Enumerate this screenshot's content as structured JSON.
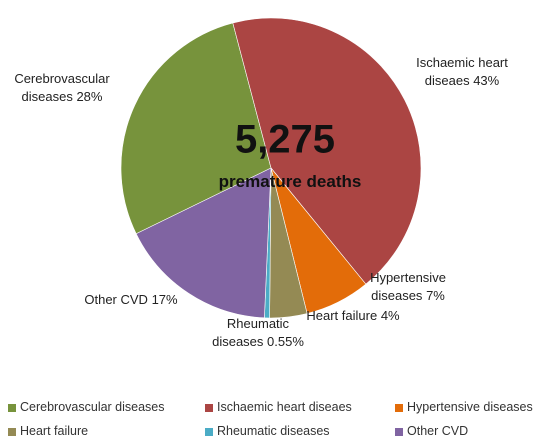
{
  "chart_data": {
    "type": "pie",
    "center_title": "5,275",
    "center_subtitle": "premature deaths",
    "categories": [
      "Cerebrovascular diseases",
      "Ischaemic heart diseaes",
      "Hypertensive diseases",
      "Heart failure",
      "Rheumatic diseases",
      "Other CVD"
    ],
    "values": [
      28,
      43,
      7,
      4,
      0.55,
      17
    ],
    "value_labels": [
      "28%",
      "43%",
      "7%",
      "4%",
      "0.55%",
      "17%"
    ],
    "colors": [
      "#77933c",
      "#ab4543",
      "#e36c09",
      "#948a54",
      "#4bacc6",
      "#8064a2"
    ],
    "legend": "bottom"
  }
}
